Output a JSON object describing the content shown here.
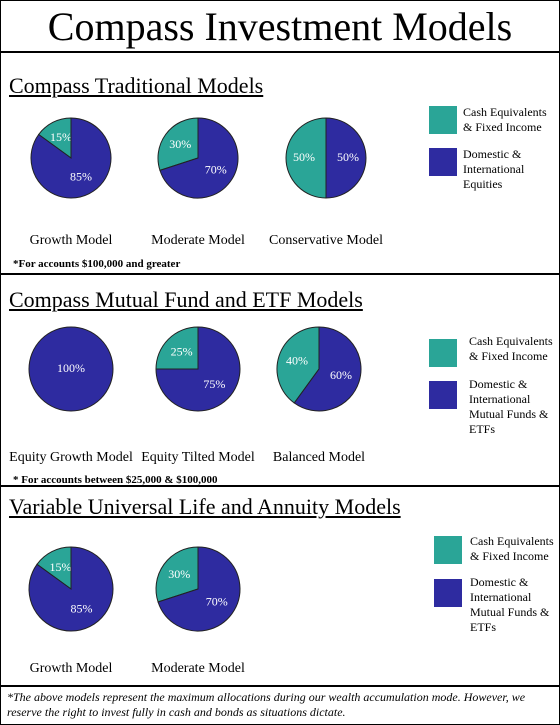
{
  "title": "Compass Investment Models",
  "sections": [
    {
      "heading": "Compass Traditional Models",
      "legend": [
        {
          "name": "Cash Equivalents & Fixed Income",
          "color": "#2aa597"
        },
        {
          "name": "Domestic & International Equities",
          "color": "#2e2ba0"
        }
      ],
      "note": "*For accounts $100,000 and greater",
      "chart_data": [
        {
          "type": "pie",
          "title": "Growth Model",
          "values": [
            15,
            85
          ],
          "value_labels": [
            "15%",
            "85%"
          ],
          "colors": [
            "#2aa597",
            "#2e2ba0"
          ]
        },
        {
          "type": "pie",
          "title": "Moderate Model",
          "values": [
            30,
            70
          ],
          "value_labels": [
            "30%",
            "70%"
          ],
          "colors": [
            "#2aa597",
            "#2e2ba0"
          ]
        },
        {
          "type": "pie",
          "title": "Conservative Model",
          "values": [
            50,
            50
          ],
          "value_labels": [
            "50%",
            "50%"
          ],
          "colors": [
            "#2aa597",
            "#2e2ba0"
          ]
        }
      ]
    },
    {
      "heading": "Compass Mutual Fund and ETF Models",
      "legend": [
        {
          "name": "Cash Equivalents & Fixed Income",
          "color": "#2aa597"
        },
        {
          "name": "Domestic & International Mutual Funds & ETFs",
          "color": "#2e2ba0"
        }
      ],
      "note": "* For accounts between $25,000 & $100,000",
      "chart_data": [
        {
          "type": "pie",
          "title": "Equity Growth Model",
          "values": [
            100
          ],
          "value_labels": [
            "100%"
          ],
          "colors": [
            "#2e2ba0"
          ]
        },
        {
          "type": "pie",
          "title": "Equity Tilted Model",
          "values": [
            25,
            75
          ],
          "value_labels": [
            "25%",
            "75%"
          ],
          "colors": [
            "#2aa597",
            "#2e2ba0"
          ]
        },
        {
          "type": "pie",
          "title": "Balanced Model",
          "values": [
            40,
            60
          ],
          "value_labels": [
            "40%",
            "60%"
          ],
          "colors": [
            "#2aa597",
            "#2e2ba0"
          ]
        }
      ]
    },
    {
      "heading": "Variable Universal Life and Annuity Models",
      "legend": [
        {
          "name": "Cash Equivalents & Fixed Income",
          "color": "#2aa597"
        },
        {
          "name": "Domestic & International Mutual Funds & ETFs",
          "color": "#2e2ba0"
        }
      ],
      "chart_data": [
        {
          "type": "pie",
          "title": "Growth Model",
          "values": [
            15,
            85
          ],
          "value_labels": [
            "15%",
            "85%"
          ],
          "colors": [
            "#2aa597",
            "#2e2ba0"
          ]
        },
        {
          "type": "pie",
          "title": "Moderate Model",
          "values": [
            30,
            70
          ],
          "value_labels": [
            "30%",
            "70%"
          ],
          "colors": [
            "#2aa597",
            "#2e2ba0"
          ]
        }
      ]
    }
  ],
  "footnote": "*The above models represent the maximum allocations during our wealth accumulation mode.  However, we reserve the right to invest fully in cash and bonds as situations dictate."
}
